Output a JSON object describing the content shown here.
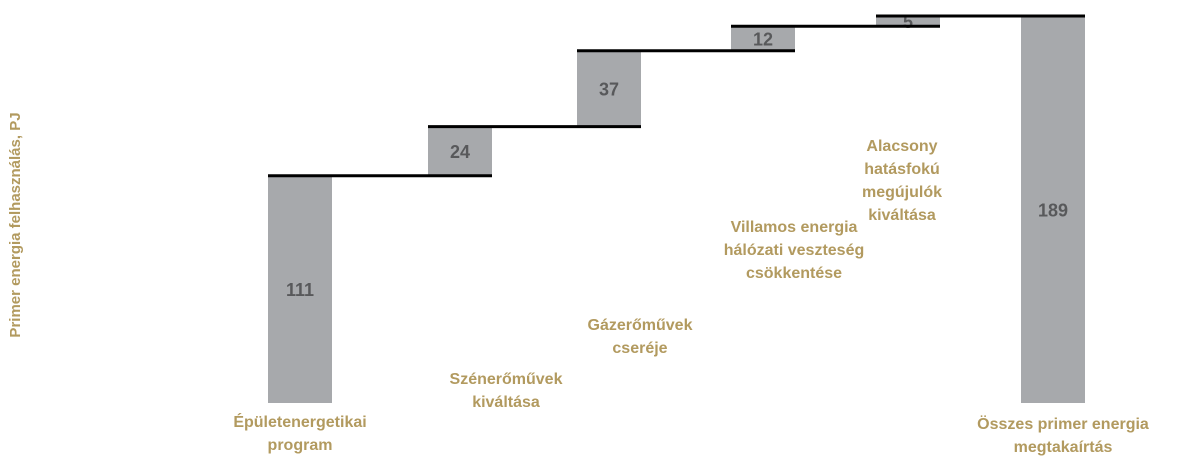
{
  "chart_data": {
    "type": "waterfall",
    "y_label": "Primer energia felhasználás, PJ",
    "categories": [
      [
        "Épületenergetikai",
        "program"
      ],
      [
        "Szénerőművek",
        "kiváltása"
      ],
      [
        "Gázerőművek",
        "cseréje"
      ],
      [
        "Villamos energia",
        "hálózati veszteség",
        "csökkentése"
      ],
      [
        "Alacsony",
        "hatásfokú",
        "megújulók",
        "kiváltása"
      ],
      [
        "Összes primer energia",
        "megtakaírtás"
      ]
    ],
    "values": [
      111,
      24,
      37,
      12,
      5,
      189
    ],
    "show_total": true,
    "color": "#a7a9ac"
  }
}
